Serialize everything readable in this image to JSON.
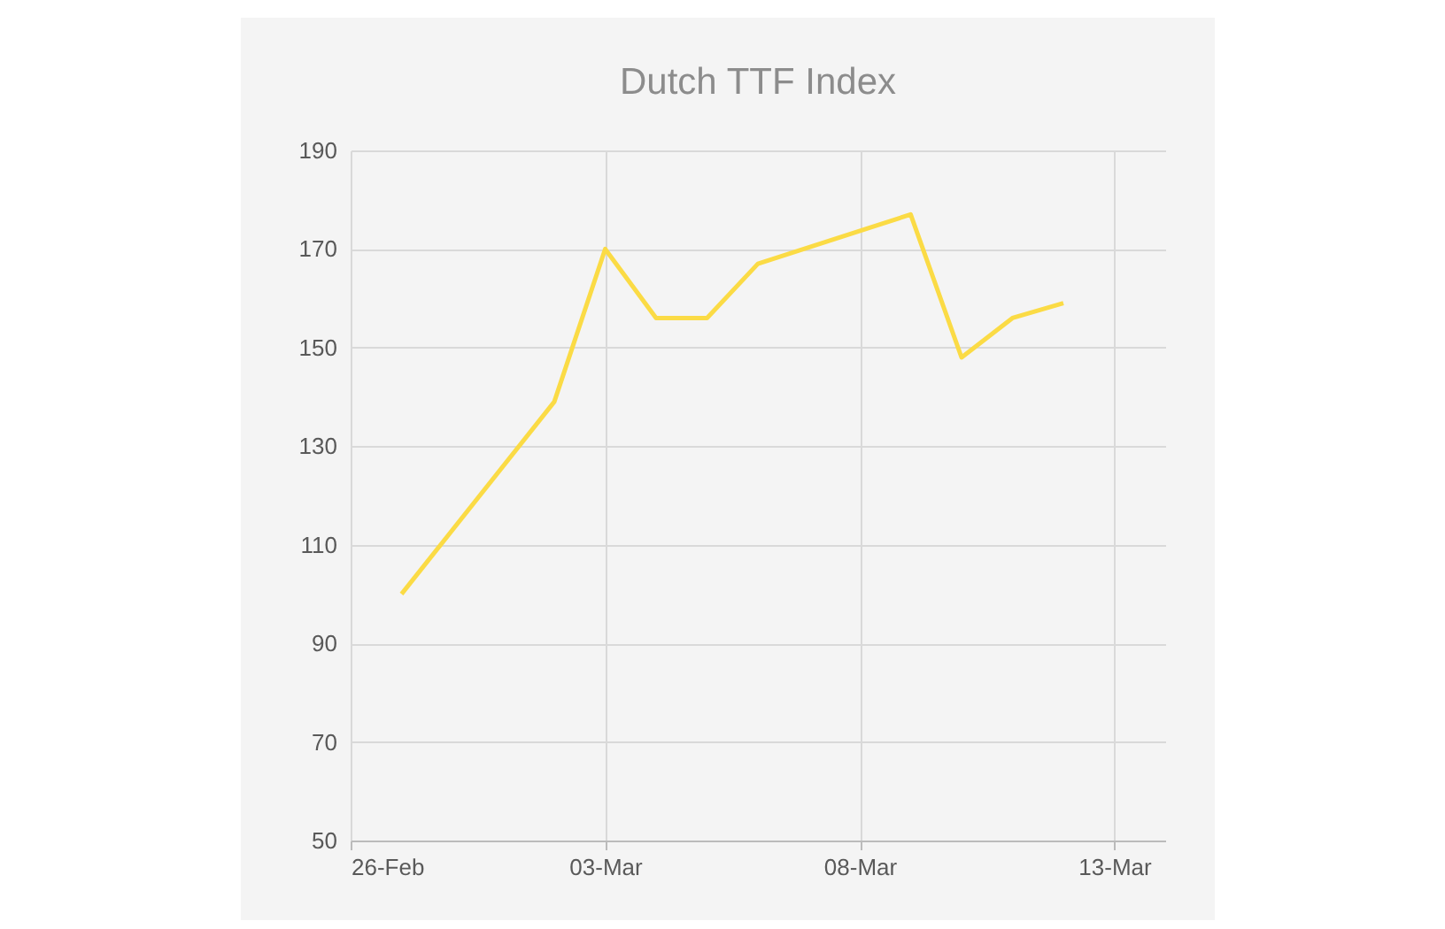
{
  "chart_data": {
    "type": "line",
    "title": "Dutch TTF Index",
    "x": [
      "--02-27",
      "--03-02",
      "--03-03",
      "--03-04",
      "--03-05",
      "--03-06",
      "--03-09",
      "--03-10",
      "--03-11",
      "--03-12"
    ],
    "series": [
      {
        "color": "#fbdb45",
        "values": [
          100,
          139,
          170,
          156,
          156,
          167,
          177,
          148,
          156,
          159
        ]
      }
    ],
    "xlim": [
      "--02-26",
      "--03-14"
    ],
    "xticks": [
      {
        "value": "--02-26",
        "label": "26-Feb"
      },
      {
        "value": "--03-03",
        "label": "03-Mar"
      },
      {
        "value": "--03-08",
        "label": "08-Mar"
      },
      {
        "value": "--03-13",
        "label": "13-Mar"
      }
    ],
    "ylim": [
      50,
      190
    ],
    "yticks": [
      50,
      70,
      90,
      110,
      130,
      150,
      170,
      190
    ],
    "grid": true,
    "marker": "none",
    "line_style": "solid"
  }
}
